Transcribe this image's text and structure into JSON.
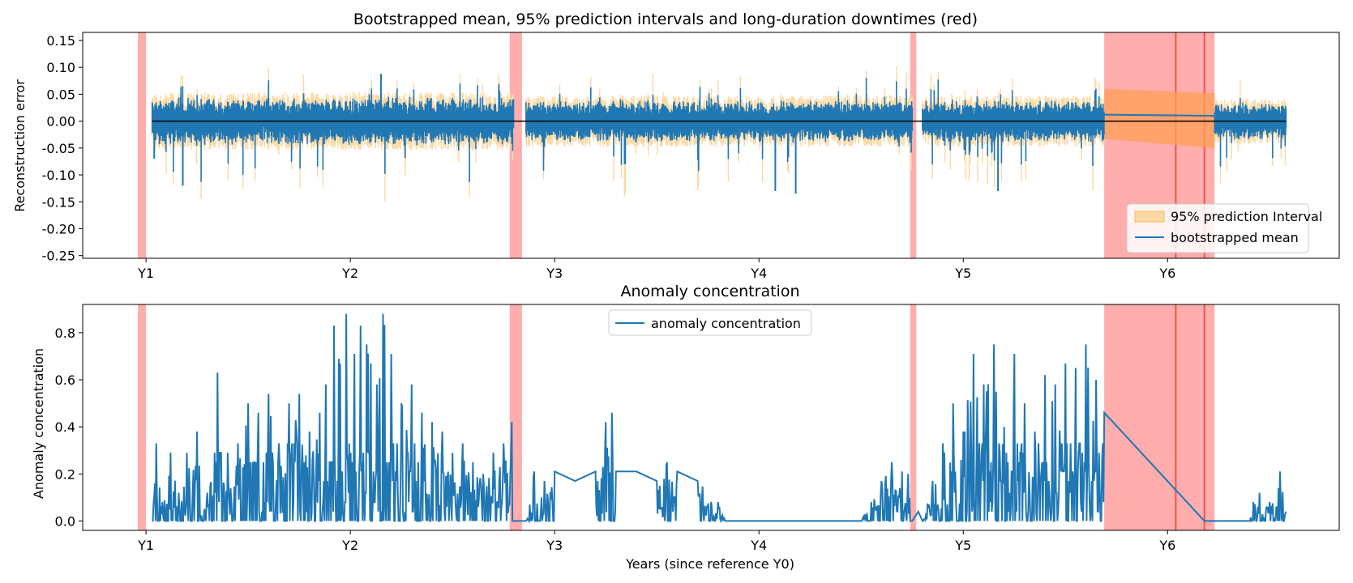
{
  "chart_data": [
    {
      "type": "line",
      "title": "Bootstrapped mean, 95% prediction intervals and long-duration downtimes (red)",
      "xlabel": "",
      "ylabel": "Reconstruction error",
      "xlim": [
        0.69,
        6.84
      ],
      "ylim": [
        -0.255,
        0.165
      ],
      "xticks": [
        1,
        2,
        3,
        4,
        5,
        6
      ],
      "xtick_labels": [
        "Y1",
        "Y2",
        "Y3",
        "Y4",
        "Y5",
        "Y6"
      ],
      "yticks": [
        0.15,
        0.1,
        0.05,
        0.0,
        -0.05,
        -0.1,
        -0.15,
        -0.2,
        -0.25
      ],
      "ytick_labels": [
        "0.15",
        "0.10",
        "0.05",
        "0.00",
        "-0.05",
        "-0.10",
        "-0.15",
        "-0.20",
        "-0.25"
      ],
      "series": [
        {
          "name": "95% prediction Interval",
          "kind": "band",
          "color": "#fcd9a4",
          "segments": [
            [
              1.03,
              2.8,
              0.045
            ],
            [
              2.86,
              4.75,
              0.04
            ],
            [
              4.8,
              5.69,
              0.04
            ],
            [
              6.23,
              6.58,
              0.035
            ]
          ],
          "gap_bridge": {
            "x": [
              5.69,
              6.23
            ],
            "lower_start": -0.033,
            "lower_end": -0.05,
            "upper_start": 0.06,
            "upper_end": 0.052
          }
        },
        {
          "name": "bootstrapped mean",
          "kind": "line",
          "color": "#1f77b4",
          "segments": [
            [
              1.03,
              2.8,
              0.018
            ],
            [
              2.86,
              4.75,
              0.016
            ],
            [
              4.8,
              5.69,
              0.016
            ],
            [
              6.23,
              6.58,
              0.015
            ]
          ],
          "gap_bridge": {
            "x": [
              5.69,
              6.23
            ],
            "y": [
              0.012,
              0.01
            ]
          },
          "notable_points": [
            [
              1.18,
              -0.12
            ],
            [
              1.04,
              -0.07
            ],
            [
              4.08,
              -0.13
            ],
            [
              4.18,
              -0.135
            ],
            [
              4.12,
              0.02
            ],
            [
              5.17,
              -0.13
            ],
            [
              2.15,
              0.088
            ]
          ]
        }
      ],
      "reference_line": {
        "y": 0.0,
        "color": "#000000"
      },
      "downtimes": [
        [
          0.96,
          1.0
        ],
        [
          2.78,
          2.84
        ],
        [
          4.74,
          4.77
        ],
        [
          5.69,
          6.23
        ]
      ],
      "downtime_lines": [
        6.04,
        6.18
      ],
      "legend_position": "lower right"
    },
    {
      "type": "line",
      "title": "Anomaly concentration",
      "xlabel": "Years (since reference Y0)",
      "ylabel": "Anomaly concentration",
      "xlim": [
        0.69,
        6.84
      ],
      "ylim": [
        -0.04,
        0.92
      ],
      "xticks": [
        1,
        2,
        3,
        4,
        5,
        6
      ],
      "xtick_labels": [
        "Y1",
        "Y2",
        "Y3",
        "Y4",
        "Y5",
        "Y6"
      ],
      "yticks": [
        0.8,
        0.6,
        0.4,
        0.2,
        0.0
      ],
      "ytick_labels": [
        "0.8",
        "0.6",
        "0.4",
        "0.2",
        "0.0"
      ],
      "series": [
        {
          "name": "anomaly concentration",
          "color": "#1f77b4",
          "points": [
            [
              1.03,
              0.0
            ],
            [
              1.05,
              0.33
            ],
            [
              1.08,
              0.08
            ],
            [
              1.12,
              0.29
            ],
            [
              1.16,
              0.12
            ],
            [
              1.2,
              0.29
            ],
            [
              1.25,
              0.38
            ],
            [
              1.3,
              0.12
            ],
            [
              1.35,
              0.63
            ],
            [
              1.4,
              0.29
            ],
            [
              1.45,
              0.33
            ],
            [
              1.5,
              0.5
            ],
            [
              1.55,
              0.46
            ],
            [
              1.6,
              0.54
            ],
            [
              1.65,
              0.33
            ],
            [
              1.7,
              0.5
            ],
            [
              1.75,
              0.54
            ],
            [
              1.8,
              0.38
            ],
            [
              1.85,
              0.46
            ],
            [
              1.88,
              0.58
            ],
            [
              1.92,
              0.83
            ],
            [
              1.95,
              0.67
            ],
            [
              1.98,
              0.88
            ],
            [
              2.02,
              0.71
            ],
            [
              2.05,
              0.83
            ],
            [
              2.08,
              0.75
            ],
            [
              2.1,
              0.67
            ],
            [
              2.13,
              0.58
            ],
            [
              2.16,
              0.88
            ],
            [
              2.2,
              0.71
            ],
            [
              2.25,
              0.5
            ],
            [
              2.3,
              0.58
            ],
            [
              2.35,
              0.46
            ],
            [
              2.4,
              0.42
            ],
            [
              2.45,
              0.38
            ],
            [
              2.5,
              0.29
            ],
            [
              2.55,
              0.33
            ],
            [
              2.6,
              0.25
            ],
            [
              2.65,
              0.2
            ],
            [
              2.7,
              0.29
            ],
            [
              2.75,
              0.33
            ],
            [
              2.79,
              0.42
            ],
            [
              2.8,
              0.0
            ],
            [
              2.86,
              0.0
            ],
            [
              2.9,
              0.21
            ],
            [
              2.95,
              0.17
            ],
            [
              3.0,
              0.21
            ],
            [
              3.1,
              0.17
            ],
            [
              3.2,
              0.21
            ],
            [
              3.25,
              0.42
            ],
            [
              3.28,
              0.46
            ],
            [
              3.3,
              0.21
            ],
            [
              3.4,
              0.21
            ],
            [
              3.5,
              0.17
            ],
            [
              3.55,
              0.25
            ],
            [
              3.6,
              0.21
            ],
            [
              3.7,
              0.17
            ],
            [
              3.8,
              0.08
            ],
            [
              3.85,
              0.0
            ],
            [
              4.0,
              0.0
            ],
            [
              4.5,
              0.0
            ],
            [
              4.55,
              0.08
            ],
            [
              4.6,
              0.17
            ],
            [
              4.65,
              0.25
            ],
            [
              4.7,
              0.21
            ],
            [
              4.73,
              0.2
            ],
            [
              4.75,
              0.0
            ],
            [
              4.78,
              0.04
            ],
            [
              4.8,
              0.0
            ],
            [
              4.85,
              0.17
            ],
            [
              4.9,
              0.33
            ],
            [
              4.95,
              0.5
            ],
            [
              5.0,
              0.38
            ],
            [
              5.05,
              0.71
            ],
            [
              5.1,
              0.58
            ],
            [
              5.15,
              0.75
            ],
            [
              5.2,
              0.4
            ],
            [
              5.25,
              0.71
            ],
            [
              5.3,
              0.5
            ],
            [
              5.35,
              0.38
            ],
            [
              5.4,
              0.62
            ],
            [
              5.45,
              0.58
            ],
            [
              5.5,
              0.67
            ],
            [
              5.55,
              0.65
            ],
            [
              5.6,
              0.75
            ],
            [
              5.65,
              0.6
            ],
            [
              5.69,
              0.46
            ],
            [
              6.18,
              0.0
            ],
            [
              6.23,
              0.0
            ],
            [
              6.4,
              0.0
            ],
            [
              6.42,
              0.08
            ],
            [
              6.45,
              0.12
            ],
            [
              6.5,
              0.08
            ],
            [
              6.55,
              0.21
            ],
            [
              6.58,
              0.04
            ]
          ]
        }
      ],
      "downtimes": [
        [
          0.96,
          1.0
        ],
        [
          2.78,
          2.84
        ],
        [
          4.74,
          4.77
        ],
        [
          5.69,
          6.23
        ]
      ],
      "downtime_lines": [
        6.04,
        6.18
      ],
      "legend_position": "upper center"
    }
  ]
}
